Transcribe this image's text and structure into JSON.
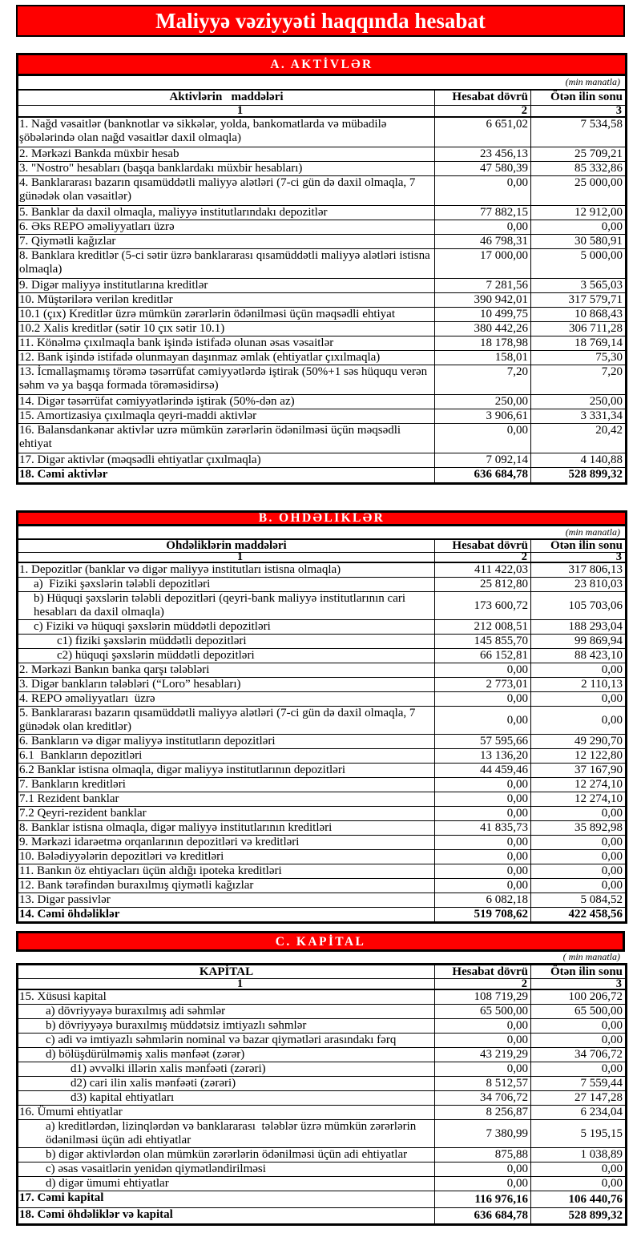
{
  "title": "Maliyyə vəziyyəti haqqında hesabat",
  "colors": {
    "banner_red": "#fe0000",
    "border_black": "#000000",
    "heading_text_white": "#ffffff"
  },
  "sections": [
    {
      "id": "A",
      "heading": "A. AKTİVLƏR",
      "units_note": "(min manatla)",
      "col_headers": {
        "items": "Aktivlərin   maddələri",
        "current": "Hesabat dövrü",
        "previous": "Ötən ilin sonu"
      },
      "col_numbers": {
        "items": "1",
        "current": "2",
        "previous": "3"
      },
      "rows": [
        {
          "label": "1. Nağd vəsaitlər (banknotlar və sikkələr, yolda, bankomatlarda və mübadilə\nşöbələrində olan nağd vəsaitlər daxil olmaqla)",
          "current": "6 651,02",
          "previous": "7 534,58",
          "lines": 2
        },
        {
          "label": "2. Mərkəzi Bankda müxbir hesab",
          "current": "23 456,13",
          "previous": "25 709,21"
        },
        {
          "label": "3. \"Nostro\" hesabları (başqa banklardakı müxbir hesabları)",
          "current": "47 580,39",
          "previous": "85 332,86"
        },
        {
          "label": "4. Banklararası bazarın qısamüddətli maliyyə alətləri (7-ci gün də daxil olmaqla, 7\ngünədək olan vəsaitlər)",
          "current": "0,00",
          "previous": "25 000,00",
          "lines": 2
        },
        {
          "label": "5. Banklar da daxil olmaqla, maliyyə institutlarındakı depozitlər",
          "current": "77 882,15",
          "previous": "12 912,00"
        },
        {
          "label": "6. Əks REPO əməliyyatları üzrə",
          "current": "0,00",
          "previous": "0,00"
        },
        {
          "label": "7. Qiymətli kağızlar",
          "current": "46 798,31",
          "previous": "30 580,91"
        },
        {
          "label": "8. Banklara kreditlər (5-ci sətir üzrə banklararası qısamüddətli maliyyə alətləri istisna\nolmaqla)",
          "current": "17 000,00",
          "previous": "5 000,00",
          "lines": 2
        },
        {
          "label": "9. Digər maliyyə institutlarına kreditlər",
          "current": "7 281,56",
          "previous": "3 565,03"
        },
        {
          "label": "10. Müştərilərə verilən kreditlər",
          "current": "390 942,01",
          "previous": "317 579,71"
        },
        {
          "label": "10.1 (çıx) Kreditlər üzrə mümkün zərərlərin ödənilməsi üçün məqsədli ehtiyat",
          "current": "10 499,75",
          "previous": "10 868,43"
        },
        {
          "label": "10.2 Xalis kreditlər (sətir 10 çıx sətir 10.1)",
          "current": "380 442,26",
          "previous": "306 711,28"
        },
        {
          "label": "11. Könəlmə çıxılmaqla bank işində istifadə olunan əsas vəsaitlər",
          "current": "18 178,98",
          "previous": "18 769,14"
        },
        {
          "label": "12. Bank işində istifadə olunmayan daşınmaz əmlak (ehtiyatlar çıxılmaqla)",
          "current": "158,01",
          "previous": "75,30"
        },
        {
          "label": "13. İcmallaşmamış törəmə təsərrüfat cəmiyyətlərdə iştirak (50%+1 səs hüququ verən\nsəhm və ya başqa formada törəməsidirsə)",
          "current": "7,20",
          "previous": "7,20",
          "lines": 2
        },
        {
          "label": "14. Digər təsərrüfat cəmiyyətlərində iştirak (50%-dən az)",
          "current": "250,00",
          "previous": "250,00"
        },
        {
          "label": "15. Amortizasiya çıxılmaqla qeyri-maddi aktivlər",
          "current": "3 906,61",
          "previous": "3 331,34"
        },
        {
          "label": "16. Balansdankənar aktivlər uzrə mümkün zərərlərin ödənilməsi üçün məqsədli\nehtiyat",
          "current": "0,00",
          "previous": "20,42",
          "lines": 2
        },
        {
          "label": "17. Digər aktivlər (məqsədli ehtiyatlar çıxılmaqla)",
          "current": "7 092,14",
          "previous": "4 140,88"
        },
        {
          "label": "18. Cəmi aktivlər",
          "current": "636 684,78",
          "previous": "528 899,32",
          "total": true
        }
      ]
    },
    {
      "id": "B",
      "heading": "B. OHDƏLIKLƏR",
      "units_note": "(min manatla)",
      "col_headers": {
        "items": "Öhdəliklərin maddələri",
        "current": "Hesabat dövrü",
        "previous": "Ötən ilin sonu"
      },
      "col_numbers": {
        "items": "1",
        "current": "2",
        "previous": "3"
      },
      "rows": [
        {
          "label": "1. Depozitlər (banklar və digər maliyyə institutları istisna olmaqla)",
          "current": "411 422,03",
          "previous": "317 806,13"
        },
        {
          "label": "a)  Fiziki şəxslərin tələbli depozitləri",
          "current": "25 812,80",
          "previous": "23 810,03",
          "indent": 1
        },
        {
          "label": "b) Hüquqi şəxslərin tələbli depozitləri (qeyri-bank maliyyə institutlarının cari\nhesabları da daxil olmaqla)",
          "current": "173 600,72",
          "previous": "105 703,06",
          "indent": 1,
          "lines": 2
        },
        {
          "label": "c) Fiziki və hüquqi şəxslərin müddətli depozitləri",
          "current": "212 008,51",
          "previous": "188 293,04",
          "indent": 1
        },
        {
          "label": "c1) fiziki şəxslərin müddətli depozitləri",
          "current": "145 855,70",
          "previous": "99 869,94",
          "indent": 2
        },
        {
          "label": "c2) hüquqi şəxslərin müddətli depozitləri",
          "current": "66 152,81",
          "previous": "88 423,10",
          "indent": 2
        },
        {
          "label": "2. Mərkəzi Bankın banka qarşı tələbləri",
          "current": "0,00",
          "previous": "0,00"
        },
        {
          "label": "3. Digər bankların tələbləri (“Loro” hesabları)",
          "current": "2 773,01",
          "previous": "2 110,13"
        },
        {
          "label": "4. REPO əməliyyatları  üzrə",
          "current": "0,00",
          "previous": "0,00"
        },
        {
          "label": "5. Banklararası bazarın qısamüddətli maliyyə alətləri (7-ci gün də daxil olmaqla, 7\ngünədək olan kreditlər)",
          "current": "0,00",
          "previous": "0,00",
          "lines": 2
        },
        {
          "label": "6. Bankların və digər maliyyə institutların depozitləri",
          "current": "57 595,66",
          "previous": "49 290,70"
        },
        {
          "label": "6.1  Bankların depozitləri",
          "current": "13 136,20",
          "previous": "12 122,80"
        },
        {
          "label": "6.2 Banklar istisna olmaqla, digər maliyyə institutlarının depozitləri",
          "current": "44 459,46",
          "previous": "37 167,90"
        },
        {
          "label": "7. Bankların kreditləri",
          "current": "0,00",
          "previous": "12 274,10"
        },
        {
          "label": "7.1 Rezident banklar",
          "current": "0,00",
          "previous": "12 274,10"
        },
        {
          "label": "7.2 Qeyri-rezident banklar",
          "current": "0,00",
          "previous": "0,00"
        },
        {
          "label": "8. Banklar istisna olmaqla, digər maliyyə institutlarının kreditləri",
          "current": "41 835,73",
          "previous": "35 892,98"
        },
        {
          "label": "9. Mərkəzi idarəetmə orqanlarının depozitləri və kreditləri",
          "current": "0,00",
          "previous": "0,00"
        },
        {
          "label": "10. Bələdiyyələrin depozitləri və kreditləri",
          "current": "0,00",
          "previous": "0,00"
        },
        {
          "label": "11. Bankın öz ehtiyacları üçün aldığı ipoteka kreditləri",
          "current": "0,00",
          "previous": "0,00"
        },
        {
          "label": "12. Bank tərəfindən buraxılmış qiymətli kağızlar",
          "current": "0,00",
          "previous": "0,00"
        },
        {
          "label": "13. Digər passivlər",
          "current": "6 082,18",
          "previous": "5 084,52"
        },
        {
          "label": "14. Cəmi öhdəliklər",
          "current": "519 708,62",
          "previous": "422 458,56",
          "total": true
        }
      ]
    },
    {
      "id": "C",
      "heading": "C. KAPİTAL",
      "units_note": "( min manatla)",
      "col_headers": {
        "items": "KAPİTAL",
        "current": "Hesabat dövrü",
        "previous": "Ötən ilin sonu"
      },
      "col_numbers": {
        "items": "1",
        "current": "2",
        "previous": "3"
      },
      "rows": [
        {
          "label": "15. Xüsusi kapital",
          "current": "108 719,29",
          "previous": "100 206,72"
        },
        {
          "label": "a) dövriyyəyə buraxılmış adi səhmlər",
          "current": "65 500,00",
          "previous": "65 500,00",
          "indent": 1
        },
        {
          "label": "b) dövriyyəyə buraxılmış müddətsiz imtiyazlı səhmlər",
          "current": "0,00",
          "previous": "0,00",
          "indent": 1
        },
        {
          "label": "c) adi və imtiyazlı səhmlərin nominal və bazar qiymətləri arasındakı fərq",
          "current": "0,00",
          "previous": "0,00",
          "indent": 1
        },
        {
          "label": "d) bölüşdürülməmiş xalis mənfəət (zərər)",
          "current": "43 219,29",
          "previous": "34 706,72",
          "indent": 1
        },
        {
          "label": "d1) əvvəlki illərin xalis mənfəəti (zərəri)",
          "current": "0,00",
          "previous": "0,00",
          "indent": 2
        },
        {
          "label": "d2) cari ilin xalis mənfəəti (zərəri)",
          "current": "8 512,57",
          "previous": "7 559,44",
          "indent": 2
        },
        {
          "label": "d3) kapital ehtiyatları",
          "current": "34 706,72",
          "previous": "27 147,28",
          "indent": 2
        },
        {
          "label": "16. Ümumi ehtiyatlar",
          "current": "8 256,87",
          "previous": "6 234,04"
        },
        {
          "label": "a) kreditlərdən, lizinqlərdən və banklararası  tələblər üzrə mümkün zərərlərin\nödənilməsi üçün adi ehtiyatlar",
          "current": "7 380,99",
          "previous": "5 195,15",
          "indent": 1,
          "lines": 2
        },
        {
          "label": "b) digər aktivlərdən olan mümkün zərərlərin ödənilməsi üçün adi ehtiyatlar",
          "current": "875,88",
          "previous": "1 038,89",
          "indent": 1
        },
        {
          "label": "c) əsas vəsaitlərin yenidən qiymətləndirilməsi",
          "current": "0,00",
          "previous": "0,00",
          "indent": 1
        },
        {
          "label": "d) digər ümumi ehtiyatlar",
          "current": "0,00",
          "previous": "0,00",
          "indent": 1
        },
        {
          "label": "17. Cəmi kapital",
          "current": "116 976,16",
          "previous": "106 440,76",
          "total": true
        },
        {
          "label": "18. Cəmi öhdəliklər və kapital",
          "current": "636 684,78",
          "previous": "528 899,32",
          "total": true
        }
      ]
    }
  ]
}
